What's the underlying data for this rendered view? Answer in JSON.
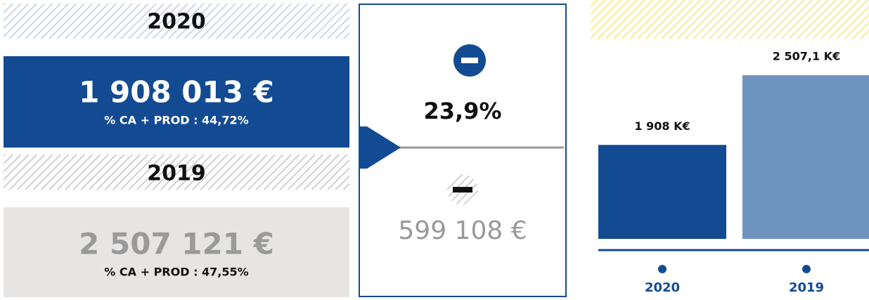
{
  "panels": [
    {
      "year": "2020",
      "amount": "1 908 013 €",
      "ratio": "% CA + PROD : 44,72%"
    },
    {
      "year": "2019",
      "amount": "2 507 121 €",
      "ratio": "% CA + PROD : 47,55%"
    }
  ],
  "difference": {
    "percent": "23,9%",
    "amount": "599 108 €"
  },
  "chart_data": {
    "type": "bar",
    "categories": [
      "2020",
      "2019"
    ],
    "values": [
      1908,
      2507.1
    ],
    "value_labels": [
      "1 908 K€",
      "2 507,1 K€"
    ],
    "colors": [
      "#134b93",
      "#6f93bf"
    ],
    "ylim": [
      1100,
      2550
    ]
  }
}
